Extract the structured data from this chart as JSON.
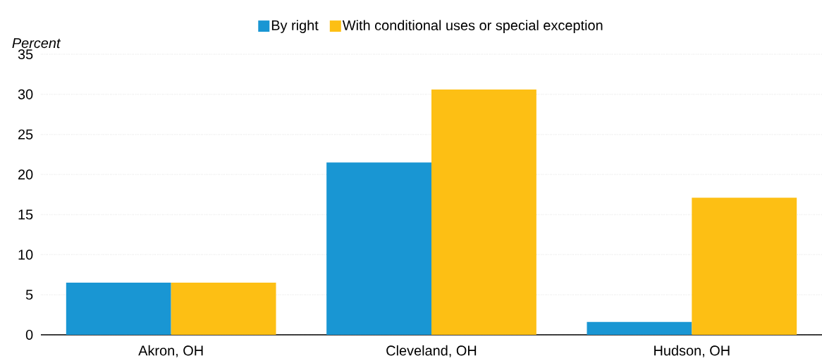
{
  "chart_data": {
    "type": "bar",
    "ylabel": "Percent",
    "categories": [
      "Akron, OH",
      "Cleveland, OH",
      "Hudson, OH"
    ],
    "series": [
      {
        "name": "By right",
        "color": "#1996d3",
        "values": [
          6.5,
          21.5,
          1.6
        ]
      },
      {
        "name": "With conditional uses or special exception",
        "color": "#fdbf14",
        "values": [
          6.5,
          30.6,
          17.1
        ]
      }
    ],
    "ylim": [
      0,
      35
    ],
    "yticks": [
      0,
      5,
      10,
      15,
      20,
      25,
      30,
      35
    ],
    "grid": "y",
    "legend": "top"
  }
}
